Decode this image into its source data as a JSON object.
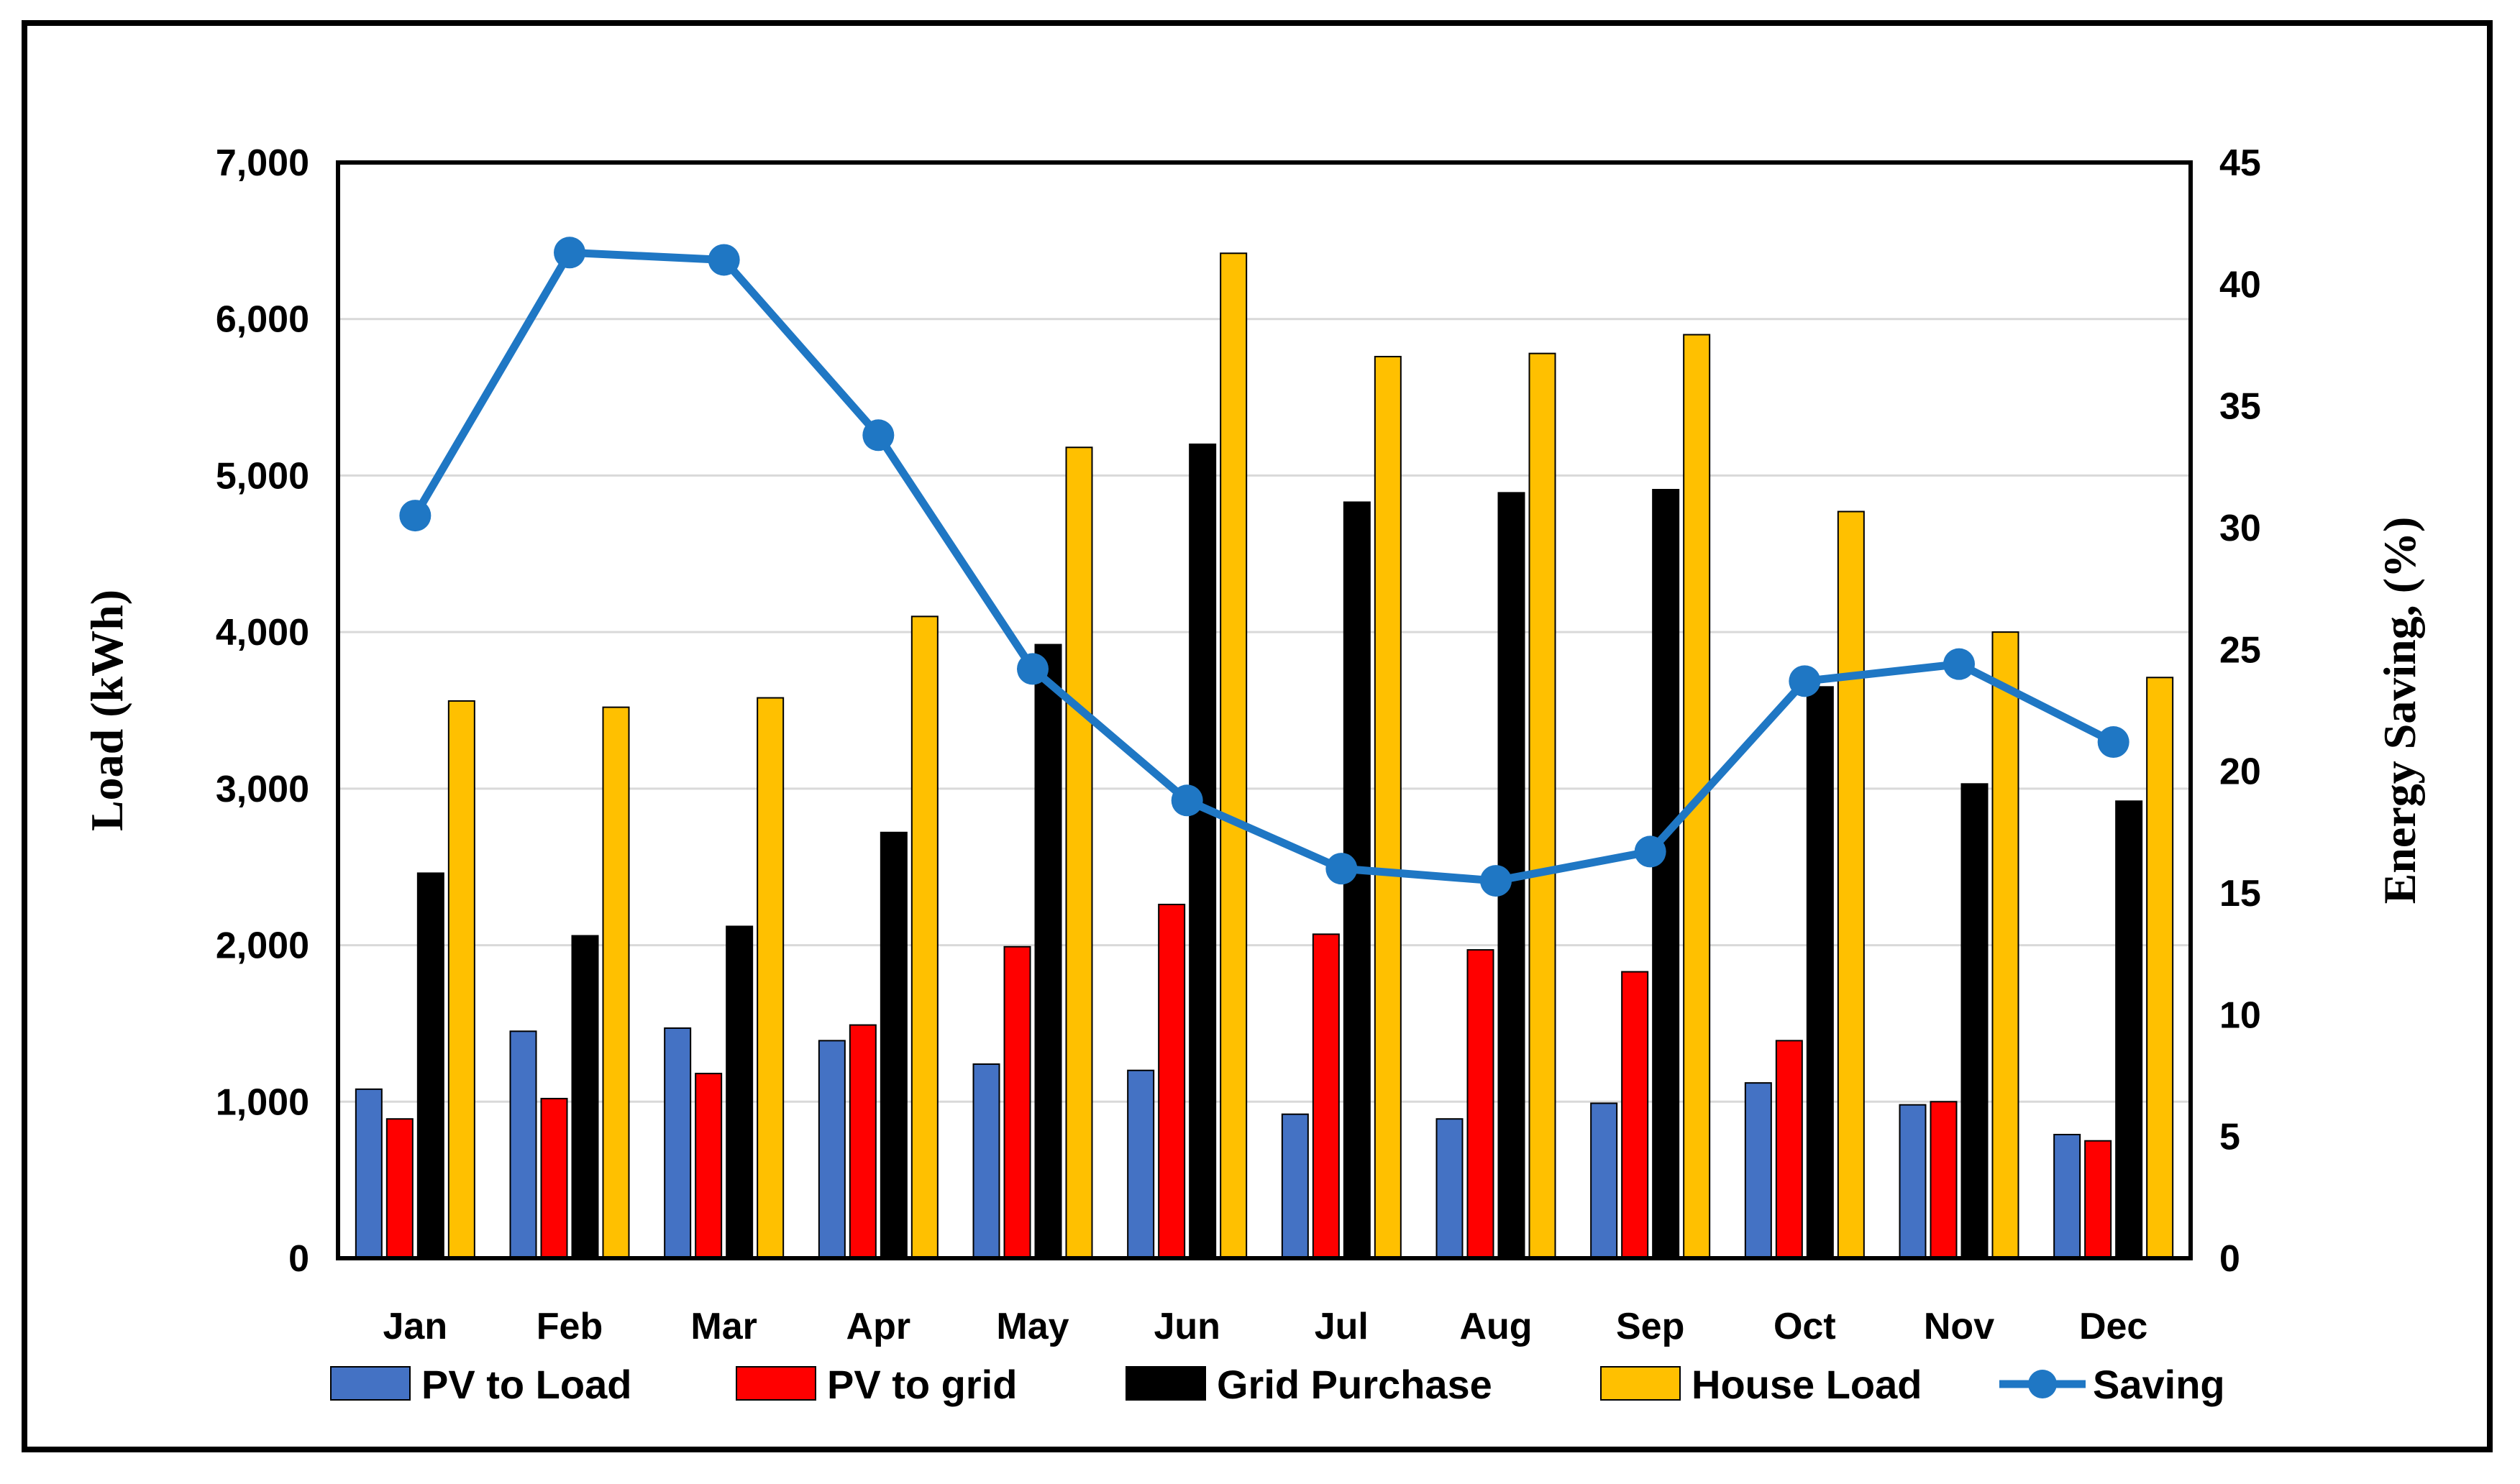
{
  "chart_data": {
    "type": "bar",
    "title": "",
    "categories": [
      "Jan",
      "Feb",
      "Mar",
      "Apr",
      "May",
      "Jun",
      "Jul",
      "Aug",
      "Sep",
      "Oct",
      "Nov",
      "Dec"
    ],
    "series": [
      {
        "name": "PV to Load",
        "type": "bar",
        "axis": "left",
        "color": "#4472C4",
        "values": [
          1080,
          1450,
          1470,
          1390,
          1240,
          1200,
          920,
          890,
          990,
          1120,
          980,
          790
        ]
      },
      {
        "name": "PV to grid",
        "type": "bar",
        "axis": "left",
        "color": "#FF0000",
        "values": [
          890,
          1020,
          1180,
          1490,
          1990,
          2260,
          2070,
          1970,
          1830,
          1390,
          1000,
          750
        ]
      },
      {
        "name": "Grid Purchase",
        "type": "bar",
        "axis": "left",
        "color": "#000000",
        "values": [
          2460,
          2060,
          2120,
          2720,
          3920,
          5200,
          4830,
          4890,
          4910,
          3650,
          3030,
          2920
        ]
      },
      {
        "name": "House Load",
        "type": "bar",
        "axis": "left",
        "color": "#FFC000",
        "values": [
          3560,
          3520,
          3580,
          4100,
          5180,
          6420,
          5760,
          5780,
          5900,
          4770,
          4000,
          3710
        ]
      },
      {
        "name": "Saving",
        "type": "line",
        "axis": "right",
        "color": "#1F77C4",
        "values": [
          30.5,
          41.3,
          41.0,
          33.8,
          24.2,
          18.8,
          16.0,
          15.5,
          16.7,
          23.7,
          24.4,
          21.2
        ]
      }
    ],
    "ylabel": "Load (kWh)",
    "ylim": [
      0,
      7000
    ],
    "yticks": [
      "0",
      "1,000",
      "2,000",
      "3,000",
      "4,000",
      "5,000",
      "6,000",
      "7,000"
    ],
    "y2label": "Energy Saving, (%)",
    "y2lim": [
      0,
      45
    ],
    "y2ticks": [
      "0",
      "5",
      "10",
      "15",
      "20",
      "25",
      "30",
      "35",
      "40",
      "45"
    ],
    "grid": true,
    "legend_position": "bottom"
  }
}
